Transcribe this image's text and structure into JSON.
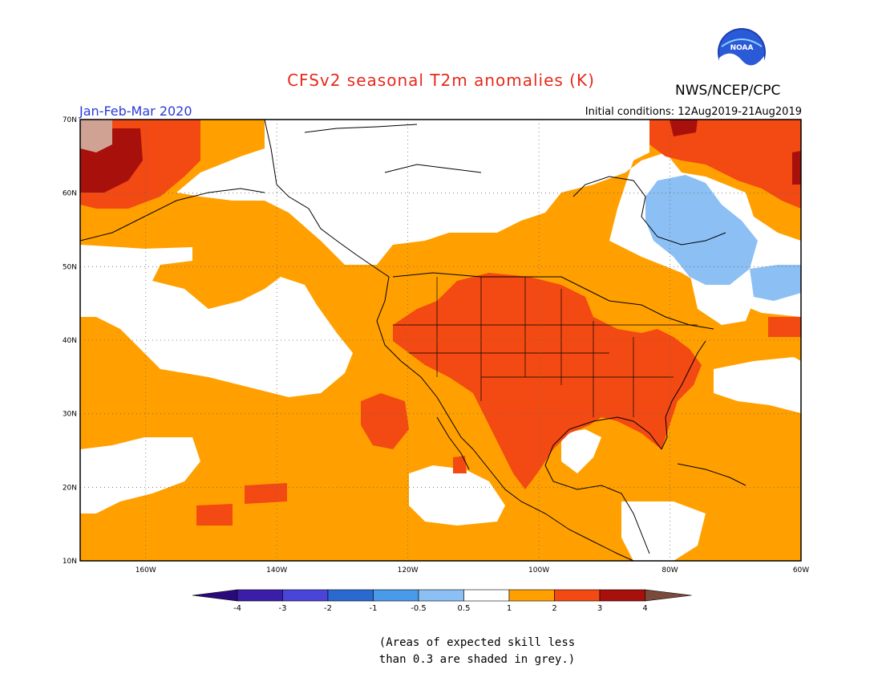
{
  "header": {
    "title": "CFSv2 seasonal T2m anomalies (K)",
    "agency": "NWS/NCEP/CPC",
    "logo_text": "NOAA",
    "period": "Jan-Feb-Mar 2020",
    "initial_conditions": "Initial conditions: 12Aug2019-21Aug2019"
  },
  "map": {
    "lon_range": [
      -170,
      -60
    ],
    "lat_range": [
      10,
      70
    ],
    "lat_labels": [
      "70N",
      "60N",
      "50N",
      "40N",
      "30N",
      "20N",
      "10N"
    ],
    "lon_labels": [
      "160W",
      "140W",
      "120W",
      "100W",
      "80W",
      "60W"
    ]
  },
  "legend": {
    "tick_labels": [
      "-4",
      "-3",
      "-2",
      "-1",
      "-0.5",
      "0.5",
      "1",
      "2",
      "3",
      "4"
    ],
    "colors": {
      "below_-4": "#2a0a7a",
      "-4_-3": "#3a1ea8",
      "-3_-2": "#4a44d8",
      "-2_-1": "#2a6ad0",
      "-1_-0.5": "#4a9aea",
      "-0.5_0.5": "#8cc0f5",
      "0.5_1": "#ffffff",
      "1_2": "#ffa000",
      "2_3": "#f24a12",
      "3_4": "#a8100c",
      "above_4": "#cfa294"
    }
  },
  "footnote": {
    "line1": "(Areas of expected skill less",
    "line2": "than 0.3 are shaded in grey.)"
  }
}
